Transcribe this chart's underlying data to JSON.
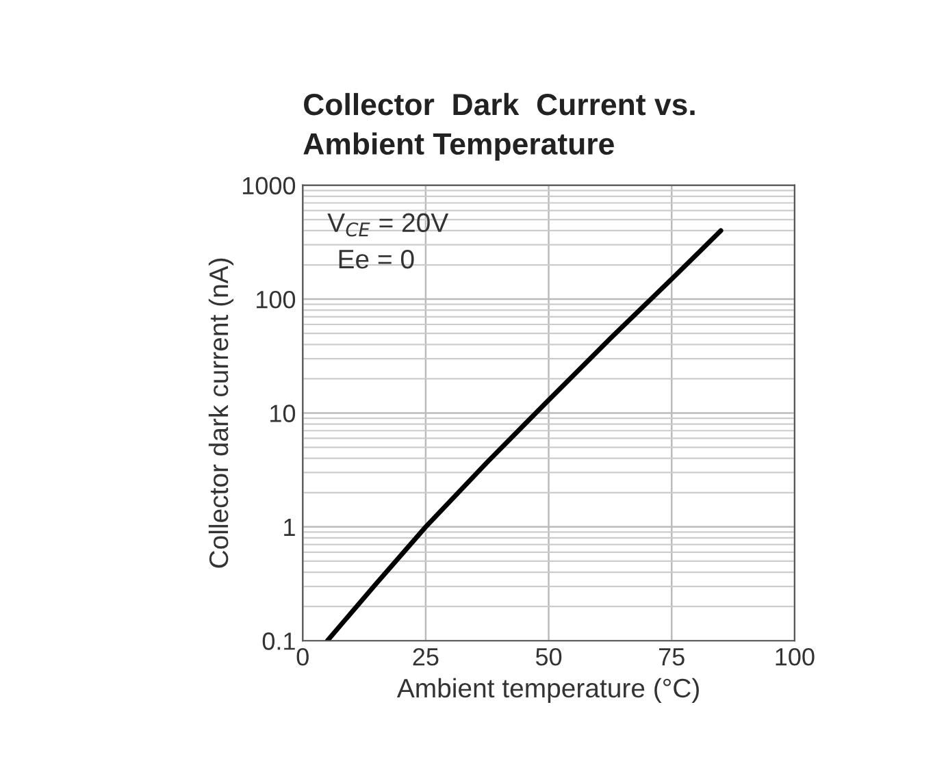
{
  "chart_data": {
    "type": "line",
    "title": "Collector  Dark  Current vs.\nAmbient Temperature",
    "xlabel": "Ambient temperature (°C)",
    "ylabel": "Collector dark current (nA)",
    "x": [
      5,
      15,
      25,
      37.5,
      50,
      62.5,
      75,
      85
    ],
    "series": [
      {
        "color": "#000000",
        "values": [
          0.1,
          0.32,
          1,
          3.7,
          13,
          45,
          150,
          400
        ]
      }
    ],
    "xlim": [
      0,
      100
    ],
    "xticks": [
      0,
      25,
      50,
      75,
      100
    ],
    "log": true,
    "ylim": [
      0.1,
      1000
    ],
    "yticks": [
      0.1,
      1,
      10,
      100,
      1000
    ],
    "grid": true,
    "annotations": [
      "V$_{CE}$ = 20V",
      "Ee = 0"
    ]
  }
}
